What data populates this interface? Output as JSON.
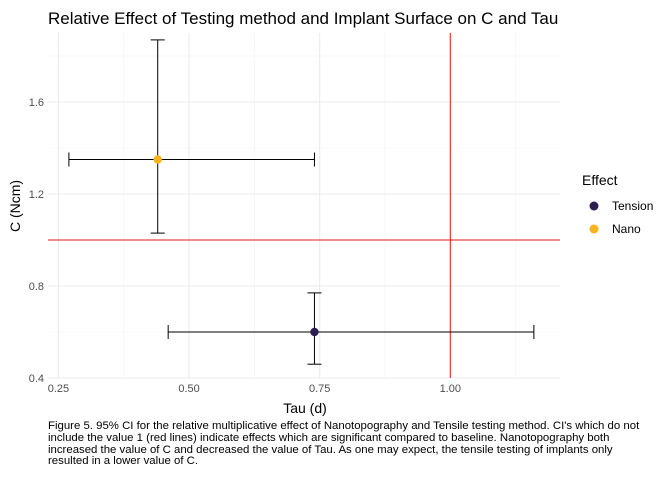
{
  "chart_data": {
    "type": "scatter",
    "title": "Relative Effect of Testing method and Implant Surface on C and Tau",
    "xlabel": "Tau (d)",
    "ylabel": "C (Ncm)",
    "xlim": [
      0.23,
      1.21
    ],
    "ylim": [
      0.4,
      1.9
    ],
    "x_ticks": [
      0.25,
      0.5,
      0.75,
      1.0
    ],
    "x_tick_labels": [
      "0.25",
      "0.50",
      "0.75",
      "1.00"
    ],
    "y_ticks": [
      0.4,
      0.8,
      1.2,
      1.6
    ],
    "y_tick_labels": [
      "0.4",
      "0.8",
      "1.2",
      "1.6"
    ],
    "grid": true,
    "reference_lines": {
      "x": 1.0,
      "y": 1.0,
      "color": "#e31a1c"
    },
    "legend": {
      "title": "Effect",
      "position": "right",
      "entries": [
        {
          "label": "Tension",
          "color": "#2d1e51"
        },
        {
          "label": "Nano",
          "color": "#f7b41b"
        }
      ]
    },
    "series": [
      {
        "name": "Tension",
        "color": "#2d1e51",
        "x": 0.74,
        "y": 0.6,
        "x_ci": [
          0.46,
          1.16
        ],
        "y_ci": [
          0.46,
          0.77
        ]
      },
      {
        "name": "Nano",
        "color": "#f7b41b",
        "x": 0.44,
        "y": 1.35,
        "x_ci": [
          0.27,
          0.74
        ],
        "y_ci": [
          1.03,
          1.87
        ]
      }
    ]
  },
  "caption": "Figure 5. 95% CI for the relative multiplicative effect of Nanotopography and Tensile testing method. CI's which do not include the value 1 (red lines) indicate effects which are significant compared to baseline. Nanotopography both increased the value of C and decreased the value of Tau. As one may expect, the tensile testing of implants only resulted in a lower value of C."
}
